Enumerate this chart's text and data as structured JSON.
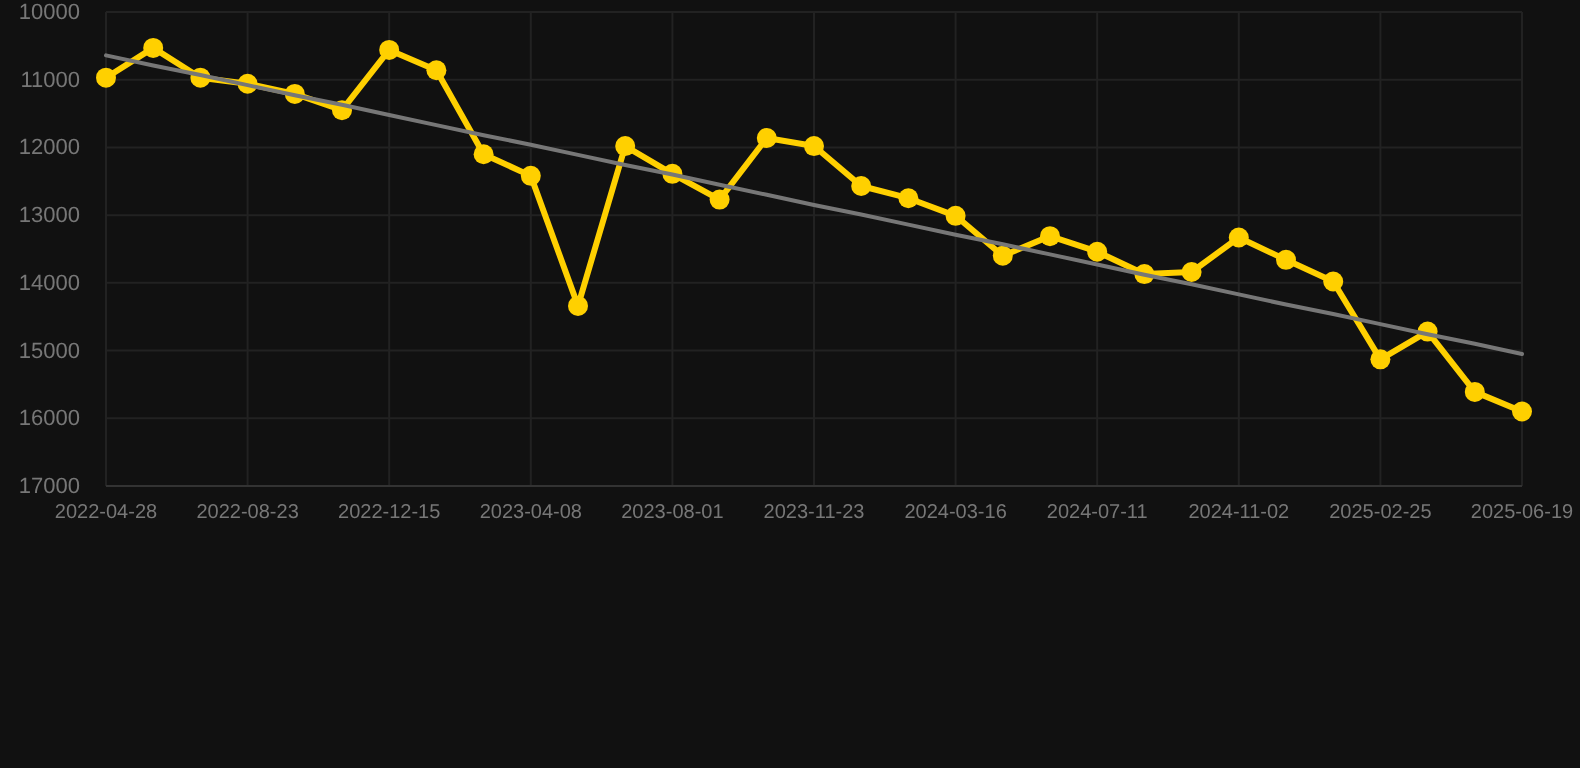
{
  "chart_data": {
    "type": "line",
    "categories": [
      "2022-04-28",
      null,
      null,
      "2022-08-23",
      null,
      null,
      "2022-12-15",
      null,
      null,
      "2023-04-08",
      null,
      null,
      "2023-08-01",
      null,
      null,
      "2023-11-23",
      null,
      null,
      "2024-03-16",
      null,
      null,
      "2024-07-11",
      null,
      null,
      "2024-11-02",
      null,
      null,
      "2025-02-25",
      null,
      null,
      "2025-06-19"
    ],
    "series": [
      {
        "color": "#ffd000",
        "values": [
          10970,
          10530,
          10970,
          11060,
          11210,
          11450,
          10560,
          10860,
          12100,
          12420,
          14340,
          11980,
          12390,
          12770,
          11860,
          11980,
          12570,
          12750,
          13010,
          13600,
          13310,
          13540,
          13870,
          13840,
          13330,
          13660,
          13980,
          15130,
          14720,
          15610,
          15900
        ]
      },
      {
        "type": "line",
        "color": "#777777",
        "marker": "none",
        "values": [
          10640,
          10790,
          10930,
          11080,
          11230,
          11370,
          11520,
          11670,
          11820,
          11960,
          12110,
          12260,
          12400,
          12550,
          12700,
          12850,
          12990,
          13140,
          13290,
          13430,
          13580,
          13730,
          13880,
          14020,
          14170,
          14320,
          14460,
          14610,
          14760,
          14900,
          15050
        ]
      }
    ],
    "ylim": [
      17000,
      10000
    ],
    "yticks": [
      10000,
      11000,
      12000,
      13000,
      14000,
      15000,
      16000,
      17000
    ],
    "grid": true,
    "marker": "circle"
  }
}
